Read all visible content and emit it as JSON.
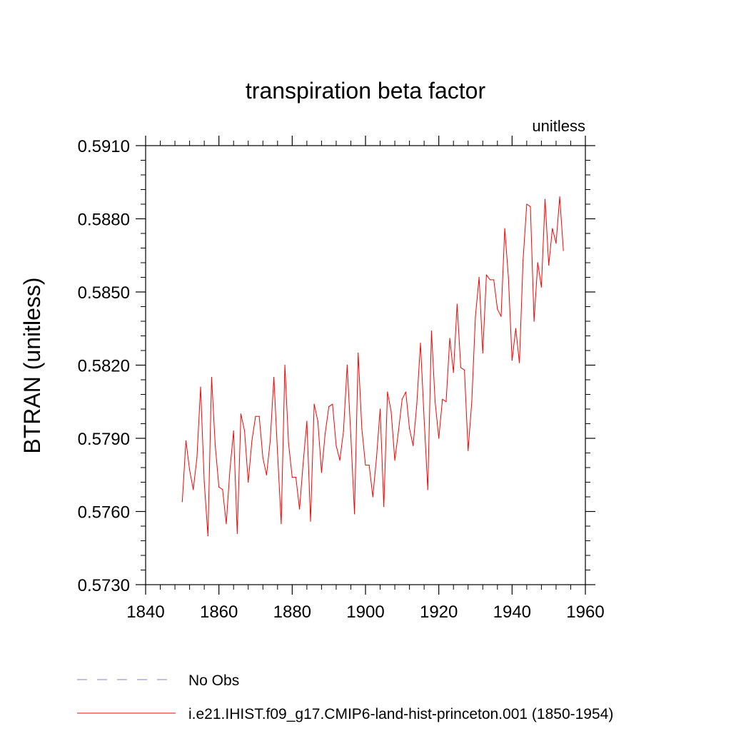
{
  "chart_data": {
    "type": "line",
    "title": "transpiration beta factor",
    "units_label": "unitless",
    "xlabel": "",
    "ylabel": "BTRAN  (unitless)",
    "xlim": [
      1840,
      1960
    ],
    "ylim": [
      0.573,
      0.591
    ],
    "x_ticks": [
      1840,
      1860,
      1880,
      1900,
      1920,
      1940,
      1960
    ],
    "x_tick_labels": [
      "1840",
      "1860",
      "1880",
      "1900",
      "1920",
      "1940",
      "1960"
    ],
    "y_ticks": [
      0.573,
      0.576,
      0.579,
      0.582,
      0.585,
      0.588,
      0.591
    ],
    "y_tick_labels": [
      "0.5730",
      "0.5760",
      "0.5790",
      "0.5820",
      "0.5850",
      "0.5880",
      "0.5910"
    ],
    "grid": false,
    "legend_position": "bottom",
    "series": [
      {
        "name": "i.e21.IHIST.f09_g17.CMIP6-land-hist-princeton.001 (1850-1954)",
        "color": "#ff0000",
        "style": "solid",
        "x": [
          1850,
          1851,
          1852,
          1853,
          1854,
          1855,
          1856,
          1857,
          1858,
          1859,
          1860,
          1861,
          1862,
          1863,
          1864,
          1865,
          1866,
          1867,
          1868,
          1869,
          1870,
          1871,
          1872,
          1873,
          1874,
          1875,
          1876,
          1877,
          1878,
          1879,
          1880,
          1881,
          1882,
          1883,
          1884,
          1885,
          1886,
          1887,
          1888,
          1889,
          1890,
          1891,
          1892,
          1893,
          1894,
          1895,
          1896,
          1897,
          1898,
          1899,
          1900,
          1901,
          1902,
          1903,
          1904,
          1905,
          1906,
          1907,
          1908,
          1909,
          1910,
          1911,
          1912,
          1913,
          1914,
          1915,
          1916,
          1917,
          1918,
          1919,
          1920,
          1921,
          1922,
          1923,
          1924,
          1925,
          1926,
          1927,
          1928,
          1929,
          1930,
          1931,
          1932,
          1933,
          1934,
          1935,
          1936,
          1937,
          1938,
          1939,
          1940,
          1941,
          1942,
          1943,
          1944,
          1945,
          1946,
          1947,
          1948,
          1949,
          1950,
          1951,
          1952,
          1953,
          1954
        ],
        "values": [
          0.5764,
          0.5789,
          0.5777,
          0.5769,
          0.5782,
          0.5811,
          0.5772,
          0.575,
          0.5815,
          0.5787,
          0.577,
          0.5769,
          0.5755,
          0.5777,
          0.5793,
          0.5751,
          0.58,
          0.5793,
          0.5772,
          0.5789,
          0.5799,
          0.5799,
          0.5782,
          0.5775,
          0.5789,
          0.5815,
          0.5784,
          0.5755,
          0.582,
          0.5788,
          0.5774,
          0.5774,
          0.5761,
          0.578,
          0.5797,
          0.5756,
          0.5804,
          0.5797,
          0.5776,
          0.5792,
          0.5803,
          0.5804,
          0.5787,
          0.5781,
          0.5793,
          0.582,
          0.5791,
          0.5759,
          0.5825,
          0.5794,
          0.5779,
          0.5779,
          0.5766,
          0.5782,
          0.5802,
          0.5762,
          0.5809,
          0.5801,
          0.5781,
          0.5793,
          0.5806,
          0.5809,
          0.5794,
          0.5787,
          0.5804,
          0.5829,
          0.5798,
          0.5769,
          0.5834,
          0.5805,
          0.579,
          0.5806,
          0.5805,
          0.5831,
          0.5817,
          0.5845,
          0.5819,
          0.5818,
          0.5785,
          0.5805,
          0.584,
          0.5856,
          0.5825,
          0.5857,
          0.5855,
          0.5855,
          0.5843,
          0.584,
          0.5876,
          0.5856,
          0.5822,
          0.5835,
          0.5821,
          0.5863,
          0.5886,
          0.5885,
          0.5838,
          0.5862,
          0.5852,
          0.5888,
          0.5861,
          0.5876,
          0.587,
          0.5889,
          0.5867
        ]
      }
    ],
    "legend": [
      {
        "label": "No Obs",
        "color": "#8080c0",
        "style": "dashed"
      },
      {
        "label": "i.e21.IHIST.f09_g17.CMIP6-land-hist-princeton.001 (1850-1954)",
        "color": "#ff0000",
        "style": "solid"
      }
    ]
  }
}
